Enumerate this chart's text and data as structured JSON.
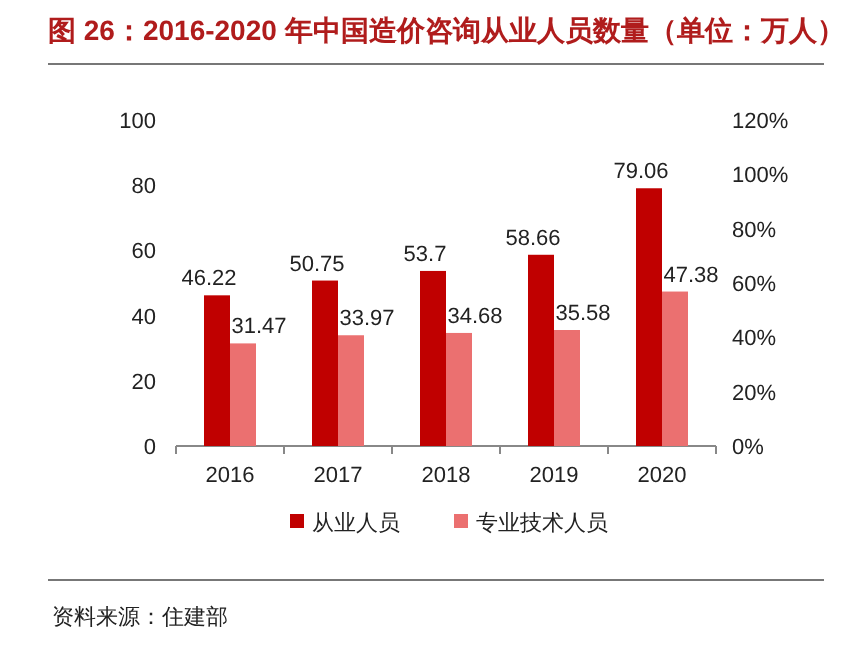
{
  "chart_data": {
    "type": "bar",
    "title": "图 26：2016-2020 年中国造价咨询从业人员数量（单位：万人）",
    "categories": [
      "2016",
      "2017",
      "2018",
      "2019",
      "2020"
    ],
    "series": [
      {
        "name": "从业人员",
        "color": "#c00000",
        "values": [
          46.22,
          50.75,
          53.7,
          58.66,
          79.06
        ]
      },
      {
        "name": "专业技术人员",
        "color": "#eb7070",
        "values": [
          31.47,
          33.97,
          34.68,
          35.58,
          47.38
        ]
      }
    ],
    "ylim": [
      0,
      100
    ],
    "yticks": [
      0,
      20,
      40,
      60,
      80,
      100
    ],
    "y2lim": [
      0,
      120
    ],
    "y2ticks": [
      {
        "value": 0,
        "label": "0%"
      },
      {
        "value": 20,
        "label": "20%"
      },
      {
        "value": 40,
        "label": "40%"
      },
      {
        "value": 60,
        "label": "60%"
      },
      {
        "value": 80,
        "label": "80%"
      },
      {
        "value": 100,
        "label": "100%"
      },
      {
        "value": 120,
        "label": "120%"
      }
    ],
    "data_labels": true,
    "legend": "bottom",
    "grid": false,
    "annotations": [
      "资料来源：住建部"
    ]
  }
}
